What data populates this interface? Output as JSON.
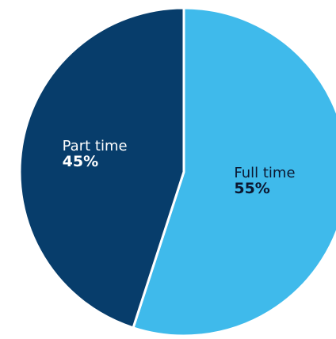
{
  "chart_data": {
    "type": "pie",
    "title": "",
    "slices": [
      {
        "label": "Full time",
        "value": 55,
        "value_text": "55%",
        "color": "#3FBAEB",
        "label_color": "#0B1730"
      },
      {
        "label": "Part time",
        "value": 45,
        "value_text": "45%",
        "color": "#073D6B",
        "label_color": "#FFFFFF"
      }
    ],
    "start": "12 o'clock",
    "direction": "clockwise",
    "separator_color": "#FFFFFF"
  }
}
